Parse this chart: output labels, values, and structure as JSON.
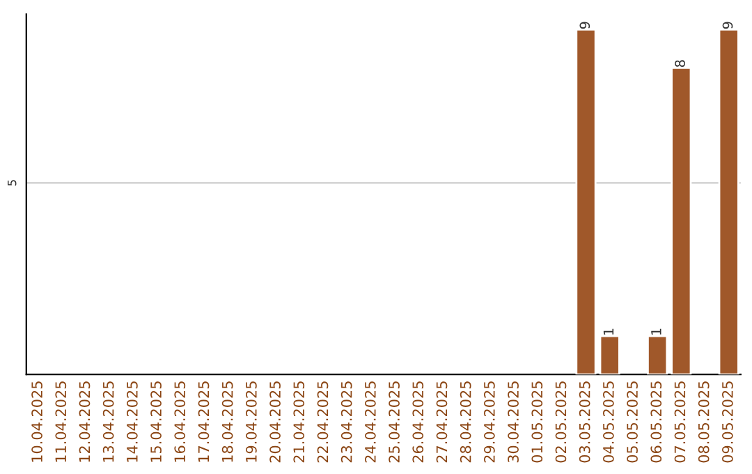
{
  "chart_data": {
    "type": "bar",
    "categories": [
      "10.04.2025",
      "11.04.2025",
      "12.04.2025",
      "13.04.2025",
      "14.04.2025",
      "15.04.2025",
      "16.04.2025",
      "17.04.2025",
      "18.04.2025",
      "19.04.2025",
      "20.04.2025",
      "21.04.2025",
      "22.04.2025",
      "23.04.2025",
      "24.04.2025",
      "25.04.2025",
      "26.04.2025",
      "27.04.2025",
      "28.04.2025",
      "29.04.2025",
      "30.04.2025",
      "01.05.2025",
      "02.05.2025",
      "03.05.2025",
      "04.05.2025",
      "05.05.2025",
      "06.05.2025",
      "07.05.2025",
      "08.05.2025",
      "09.05.2025"
    ],
    "values": [
      null,
      null,
      null,
      null,
      null,
      null,
      null,
      null,
      null,
      null,
      null,
      null,
      null,
      null,
      null,
      null,
      null,
      null,
      null,
      null,
      null,
      null,
      null,
      9,
      1,
      null,
      1,
      8,
      null,
      9
    ],
    "color": "#a0582a",
    "ylim": [
      0,
      9.4
    ],
    "yticks": [
      5
    ],
    "grid": "y",
    "data_labels": true
  }
}
